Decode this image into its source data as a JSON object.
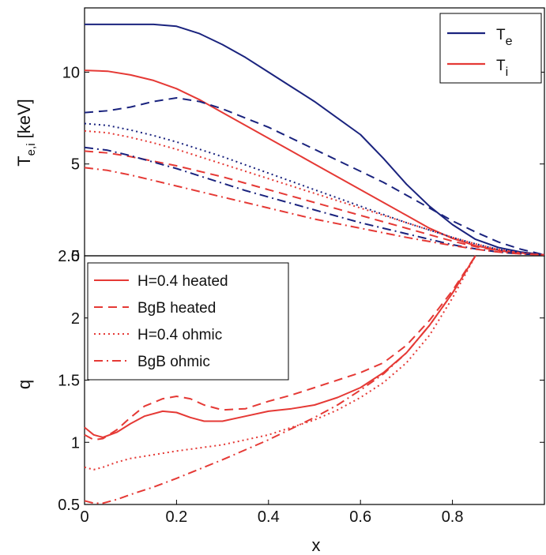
{
  "chart_data": [
    {
      "type": "line",
      "panel": "top",
      "ylabel_main": "T",
      "ylabel_sub": "e,i",
      "ylabel_unit": " [keV]",
      "xlim": [
        0,
        1
      ],
      "ylim": [
        0,
        13.5
      ],
      "yticks": [
        {
          "value": 0,
          "label": "0"
        },
        {
          "value": 5,
          "label": "5"
        },
        {
          "value": 10,
          "label": "10"
        }
      ],
      "legend": {
        "position": "top-right",
        "entries": [
          {
            "main": "T",
            "sub": "e",
            "color": "#1a237e"
          },
          {
            "main": "T",
            "sub": "i",
            "color": "#e53935"
          }
        ]
      },
      "series": [
        {
          "key": "te-heated-h04",
          "color": "#1a237e",
          "dash": "solid",
          "x": [
            0,
            0.05,
            0.1,
            0.15,
            0.2,
            0.25,
            0.3,
            0.35,
            0.4,
            0.45,
            0.5,
            0.55,
            0.6,
            0.65,
            0.7,
            0.75,
            0.8,
            0.85,
            0.9,
            0.95,
            1.0
          ],
          "y": [
            12.6,
            12.6,
            12.6,
            12.6,
            12.5,
            12.1,
            11.5,
            10.8,
            10.0,
            9.2,
            8.4,
            7.5,
            6.6,
            5.3,
            3.9,
            2.7,
            1.7,
            0.9,
            0.45,
            0.2,
            0.05
          ]
        },
        {
          "key": "ti-heated-h04",
          "color": "#e53935",
          "dash": "solid",
          "x": [
            0,
            0.05,
            0.1,
            0.15,
            0.2,
            0.25,
            0.3,
            0.35,
            0.4,
            0.45,
            0.5,
            0.55,
            0.6,
            0.65,
            0.7,
            0.75,
            0.8,
            0.85,
            0.9,
            0.95,
            1.0
          ],
          "y": [
            10.1,
            10.05,
            9.85,
            9.55,
            9.1,
            8.5,
            7.8,
            7.1,
            6.4,
            5.7,
            5.0,
            4.3,
            3.6,
            2.9,
            2.2,
            1.5,
            0.95,
            0.55,
            0.3,
            0.15,
            0.05
          ]
        },
        {
          "key": "te-heated-bgb",
          "color": "#1a237e",
          "dash": "dashed",
          "x": [
            0,
            0.05,
            0.1,
            0.15,
            0.2,
            0.25,
            0.3,
            0.35,
            0.4,
            0.45,
            0.5,
            0.55,
            0.6,
            0.65,
            0.7,
            0.75,
            0.8,
            0.85,
            0.9,
            0.95,
            1.0
          ],
          "y": [
            7.8,
            7.9,
            8.1,
            8.4,
            8.6,
            8.4,
            8.0,
            7.5,
            7.0,
            6.4,
            5.8,
            5.2,
            4.6,
            4.0,
            3.3,
            2.6,
            1.9,
            1.3,
            0.75,
            0.35,
            0.05
          ]
        },
        {
          "key": "ti-heated-bgb",
          "color": "#e53935",
          "dash": "dashed",
          "x": [
            0,
            0.05,
            0.1,
            0.15,
            0.2,
            0.25,
            0.3,
            0.35,
            0.4,
            0.45,
            0.5,
            0.55,
            0.6,
            0.65,
            0.7,
            0.75,
            0.8,
            0.85,
            0.9,
            0.95,
            1.0
          ],
          "y": [
            5.7,
            5.6,
            5.4,
            5.15,
            4.9,
            4.6,
            4.3,
            3.95,
            3.6,
            3.25,
            2.9,
            2.55,
            2.2,
            1.85,
            1.5,
            1.15,
            0.8,
            0.5,
            0.28,
            0.12,
            0.05
          ]
        },
        {
          "key": "te-ohmic-h04",
          "color": "#1a237e",
          "dash": "dotted",
          "x": [
            0,
            0.05,
            0.1,
            0.15,
            0.2,
            0.25,
            0.3,
            0.35,
            0.4,
            0.45,
            0.5,
            0.55,
            0.6,
            0.65,
            0.7,
            0.75,
            0.8,
            0.85,
            0.9,
            0.95,
            1.0
          ],
          "y": [
            7.2,
            7.1,
            6.85,
            6.55,
            6.2,
            5.8,
            5.4,
            4.95,
            4.5,
            4.05,
            3.6,
            3.15,
            2.7,
            2.25,
            1.8,
            1.4,
            1.0,
            0.65,
            0.35,
            0.15,
            0.05
          ]
        },
        {
          "key": "ti-ohmic-h04",
          "color": "#e53935",
          "dash": "dotted",
          "x": [
            0,
            0.05,
            0.1,
            0.15,
            0.2,
            0.25,
            0.3,
            0.35,
            0.4,
            0.45,
            0.5,
            0.55,
            0.6,
            0.65,
            0.7,
            0.75,
            0.8,
            0.85,
            0.9,
            0.95,
            1.0
          ],
          "y": [
            6.8,
            6.7,
            6.45,
            6.15,
            5.8,
            5.4,
            5.0,
            4.6,
            4.2,
            3.8,
            3.4,
            3.0,
            2.6,
            2.2,
            1.8,
            1.4,
            1.0,
            0.65,
            0.35,
            0.15,
            0.05
          ]
        },
        {
          "key": "te-ohmic-bgb",
          "color": "#1a237e",
          "dash": "dashdot",
          "x": [
            0,
            0.05,
            0.1,
            0.15,
            0.2,
            0.25,
            0.3,
            0.35,
            0.4,
            0.45,
            0.5,
            0.55,
            0.6,
            0.65,
            0.7,
            0.75,
            0.8,
            0.85,
            0.9,
            0.95,
            1.0
          ],
          "y": [
            5.9,
            5.75,
            5.45,
            5.1,
            4.75,
            4.35,
            3.95,
            3.55,
            3.2,
            2.85,
            2.5,
            2.15,
            1.8,
            1.5,
            1.2,
            0.9,
            0.6,
            0.38,
            0.2,
            0.1,
            0.05
          ]
        },
        {
          "key": "ti-ohmic-bgb",
          "color": "#e53935",
          "dash": "dashdot",
          "x": [
            0,
            0.05,
            0.1,
            0.15,
            0.2,
            0.25,
            0.3,
            0.35,
            0.4,
            0.45,
            0.5,
            0.55,
            0.6,
            0.65,
            0.7,
            0.75,
            0.8,
            0.85,
            0.9,
            0.95,
            1.0
          ],
          "y": [
            4.8,
            4.65,
            4.4,
            4.1,
            3.8,
            3.5,
            3.2,
            2.9,
            2.6,
            2.3,
            2.0,
            1.75,
            1.5,
            1.25,
            1.0,
            0.78,
            0.56,
            0.36,
            0.2,
            0.1,
            0.05
          ]
        }
      ]
    },
    {
      "type": "line",
      "panel": "bottom",
      "ylabel": "q",
      "xlabel": "x",
      "xlim": [
        0,
        1
      ],
      "ylim": [
        0.5,
        2.5
      ],
      "yticks": [
        {
          "value": 0.5,
          "label": "0.5"
        },
        {
          "value": 1,
          "label": "1"
        },
        {
          "value": 1.5,
          "label": "1.5"
        },
        {
          "value": 2,
          "label": "2"
        },
        {
          "value": 2.5,
          "label": "2.5"
        }
      ],
      "xticks": [
        {
          "value": 0,
          "label": "0"
        },
        {
          "value": 0.2,
          "label": "0.2"
        },
        {
          "value": 0.4,
          "label": "0.4"
        },
        {
          "value": 0.6,
          "label": "0.6"
        },
        {
          "value": 0.8,
          "label": "0.8"
        }
      ],
      "legend": {
        "position": "top-left",
        "entries": [
          {
            "label": "H=0.4 heated",
            "dash": "solid",
            "color": "#e53935"
          },
          {
            "label": "BgB heated",
            "dash": "dashed",
            "color": "#e53935"
          },
          {
            "label": "H=0.4 ohmic",
            "dash": "dotted",
            "color": "#e53935"
          },
          {
            "label": "BgB ohmic",
            "dash": "dashdot",
            "color": "#e53935"
          }
        ]
      },
      "series": [
        {
          "key": "q-heated-h04",
          "color": "#e53935",
          "dash": "solid",
          "x": [
            0,
            0.02,
            0.04,
            0.07,
            0.1,
            0.13,
            0.17,
            0.2,
            0.23,
            0.26,
            0.3,
            0.35,
            0.4,
            0.45,
            0.5,
            0.55,
            0.6,
            0.65,
            0.7,
            0.75,
            0.8,
            0.85
          ],
          "y": [
            1.12,
            1.06,
            1.04,
            1.08,
            1.15,
            1.21,
            1.25,
            1.24,
            1.2,
            1.17,
            1.17,
            1.21,
            1.25,
            1.27,
            1.3,
            1.36,
            1.44,
            1.56,
            1.72,
            1.94,
            2.2,
            2.5
          ]
        },
        {
          "key": "q-heated-bgb",
          "color": "#e53935",
          "dash": "dashed",
          "x": [
            0,
            0.02,
            0.04,
            0.07,
            0.1,
            0.13,
            0.17,
            0.2,
            0.23,
            0.26,
            0.3,
            0.35,
            0.4,
            0.45,
            0.5,
            0.55,
            0.6,
            0.65,
            0.7,
            0.75,
            0.8,
            0.85
          ],
          "y": [
            1.06,
            1.02,
            1.03,
            1.1,
            1.2,
            1.29,
            1.35,
            1.37,
            1.35,
            1.3,
            1.26,
            1.27,
            1.33,
            1.38,
            1.44,
            1.5,
            1.56,
            1.64,
            1.78,
            1.98,
            2.22,
            2.5
          ]
        },
        {
          "key": "q-ohmic-h04",
          "color": "#e53935",
          "dash": "dotted",
          "x": [
            0,
            0.02,
            0.04,
            0.07,
            0.1,
            0.15,
            0.2,
            0.3,
            0.4,
            0.5,
            0.55,
            0.6,
            0.65,
            0.7,
            0.75,
            0.8,
            0.85
          ],
          "y": [
            0.8,
            0.78,
            0.8,
            0.84,
            0.87,
            0.9,
            0.93,
            0.98,
            1.06,
            1.18,
            1.26,
            1.36,
            1.48,
            1.64,
            1.86,
            2.16,
            2.5
          ]
        },
        {
          "key": "q-ohmic-bgb",
          "color": "#e53935",
          "dash": "dashdot",
          "x": [
            0,
            0.02,
            0.04,
            0.07,
            0.1,
            0.15,
            0.2,
            0.3,
            0.4,
            0.5,
            0.55,
            0.6,
            0.65,
            0.7,
            0.75,
            0.8,
            0.85
          ],
          "y": [
            0.53,
            0.51,
            0.51,
            0.54,
            0.58,
            0.64,
            0.71,
            0.86,
            1.02,
            1.2,
            1.3,
            1.42,
            1.55,
            1.72,
            1.94,
            2.2,
            2.5
          ]
        }
      ]
    }
  ]
}
